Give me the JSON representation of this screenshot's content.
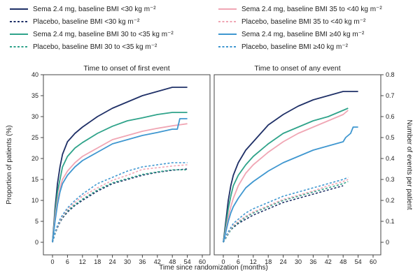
{
  "chart_data": {
    "type": "line",
    "legend": {
      "placement": "top",
      "entries": [
        {
          "label": "Sema 2.4 mg, baseline BMI <30 kg m⁻²",
          "color": "#1f3067",
          "dash": false
        },
        {
          "label": "Placebo, baseline BMI <30 kg m⁻²",
          "color": "#1f3067",
          "dash": true
        },
        {
          "label": "Sema 2.4 mg, baseline BMI 30 to <35 kg m⁻²",
          "color": "#2fa38a",
          "dash": false
        },
        {
          "label": "Placebo, baseline BMI 30 to <35 kg m⁻²",
          "color": "#2fa38a",
          "dash": true
        },
        {
          "label": "Sema 2.4 mg, baseline BMI 35 to <40 kg m⁻²",
          "color": "#f0a6b4",
          "dash": false
        },
        {
          "label": "Placebo, baseline BMI 35 to <40 kg m⁻²",
          "color": "#f0a6b4",
          "dash": true
        },
        {
          "label": "Sema 2.4 mg, baseline BMI ≥40 kg m⁻²",
          "color": "#3f97d0",
          "dash": false
        },
        {
          "label": "Placebo, baseline BMI ≥40 kg m⁻²",
          "color": "#3f97d0",
          "dash": true
        }
      ]
    },
    "xlabel": "Time since randomization (months)",
    "x_ticks": [
      0,
      6,
      12,
      18,
      24,
      30,
      36,
      42,
      48,
      54,
      60
    ],
    "xlim": [
      -2,
      62
    ],
    "panels": [
      {
        "title": "Time to onset of first event",
        "ylabel": "Proportion of patients (%)",
        "y_axis_side": "left",
        "ylim": [
          -3,
          40
        ],
        "y_ticks": [
          0,
          5,
          10,
          15,
          20,
          25,
          30,
          35,
          40
        ],
        "series": [
          {
            "legend_index": 0,
            "color": "#1f3067",
            "dash": false,
            "x": [
              0,
              1,
              2,
              3,
              4,
              6,
              9,
              12,
              18,
              24,
              30,
              36,
              42,
              48,
              54
            ],
            "y": [
              0,
              8,
              14,
              18,
              21,
              24,
              26,
              27.5,
              30,
              32,
              33.5,
              35,
              36,
              37,
              37
            ]
          },
          {
            "legend_index": 2,
            "color": "#2fa38a",
            "dash": false,
            "x": [
              0,
              1,
              2,
              3,
              4,
              6,
              9,
              12,
              18,
              24,
              30,
              36,
              42,
              48,
              54
            ],
            "y": [
              0,
              7,
              12,
              15,
              18,
              20.5,
              22.5,
              23.8,
              26,
              27.7,
              29,
              29.7,
              30.5,
              31,
              31
            ]
          },
          {
            "legend_index": 4,
            "color": "#f0a6b4",
            "dash": false,
            "x": [
              0,
              1,
              2,
              3,
              4,
              6,
              9,
              12,
              18,
              24,
              30,
              36,
              42,
              48,
              54
            ],
            "y": [
              0,
              6,
              10,
              13,
              15,
              17,
              19,
              20.5,
              22.5,
              24.5,
              25.5,
              26.5,
              27.2,
              27.8,
              28.3
            ]
          },
          {
            "legend_index": 6,
            "color": "#3f97d0",
            "dash": false,
            "x": [
              0,
              1,
              2,
              3,
              4,
              6,
              9,
              12,
              18,
              24,
              30,
              36,
              42,
              48,
              50,
              51,
              54
            ],
            "y": [
              0,
              5,
              9,
              12,
              14,
              16,
              18,
              19.5,
              21.5,
              23.5,
              24.5,
              25.5,
              26.2,
              27,
              27,
              29.5,
              29.5
            ]
          },
          {
            "legend_index": 1,
            "color": "#1f3067",
            "dash": true,
            "x": [
              0,
              1,
              2,
              3,
              4,
              6,
              9,
              12,
              18,
              24,
              30,
              36,
              42,
              48,
              54
            ],
            "y": [
              0,
              2,
              3.5,
              4.8,
              5.8,
              7.2,
              8.8,
              10,
              12.2,
              14,
              15,
              16,
              16.7,
              17.2,
              17.5
            ]
          },
          {
            "legend_index": 3,
            "color": "#2fa38a",
            "dash": true,
            "x": [
              0,
              1,
              2,
              3,
              4,
              6,
              9,
              12,
              18,
              24,
              30,
              36,
              42,
              48,
              54
            ],
            "y": [
              0,
              2,
              3.7,
              5,
              6,
              7.5,
              9,
              10.3,
              12.5,
              14.2,
              15.2,
              16.2,
              16.8,
              17.3,
              17.3
            ]
          },
          {
            "legend_index": 5,
            "color": "#f0a6b4",
            "dash": true,
            "x": [
              0,
              1,
              2,
              3,
              4,
              6,
              9,
              12,
              18,
              24,
              30,
              36,
              42,
              48,
              54
            ],
            "y": [
              0,
              2.2,
              3.8,
              5.2,
              6.2,
              7.8,
              9.5,
              11,
              13,
              14.8,
              16,
              17.4,
              17.8,
              18.2,
              18.5
            ]
          },
          {
            "legend_index": 7,
            "color": "#3f97d0",
            "dash": true,
            "x": [
              0,
              1,
              2,
              3,
              4,
              6,
              9,
              12,
              18,
              24,
              30,
              36,
              42,
              48,
              54
            ],
            "y": [
              0,
              2.4,
              4,
              5.5,
              6.5,
              8.2,
              10,
              11.5,
              14,
              15.5,
              17,
              18,
              18.5,
              19,
              19
            ]
          }
        ]
      },
      {
        "title": "Time to onset of any event",
        "ylabel": "Number of events per patient",
        "y_axis_side": "right",
        "ylim": [
          -0.06,
          0.8
        ],
        "y_ticks": [
          0,
          0.1,
          0.2,
          0.3,
          0.4,
          0.5,
          0.6,
          0.7,
          0.8
        ],
        "series": [
          {
            "legend_index": 0,
            "color": "#1f3067",
            "dash": false,
            "x": [
              0,
              1,
              2,
              3,
              4,
              6,
              9,
              12,
              18,
              24,
              30,
              36,
              42,
              48,
              54
            ],
            "y": [
              0,
              0.1,
              0.2,
              0.27,
              0.32,
              0.38,
              0.44,
              0.48,
              0.56,
              0.61,
              0.65,
              0.68,
              0.7,
              0.72,
              0.72
            ]
          },
          {
            "legend_index": 2,
            "color": "#2fa38a",
            "dash": false,
            "x": [
              0,
              1,
              2,
              3,
              4,
              6,
              9,
              12,
              18,
              24,
              30,
              36,
              42,
              48,
              50
            ],
            "y": [
              0,
              0.08,
              0.16,
              0.22,
              0.27,
              0.32,
              0.37,
              0.41,
              0.47,
              0.52,
              0.55,
              0.58,
              0.6,
              0.63,
              0.64
            ]
          },
          {
            "legend_index": 4,
            "color": "#f0a6b4",
            "dash": false,
            "x": [
              0,
              1,
              2,
              3,
              4,
              6,
              9,
              12,
              18,
              24,
              30,
              36,
              42,
              48,
              50
            ],
            "y": [
              0,
              0.06,
              0.12,
              0.17,
              0.21,
              0.27,
              0.33,
              0.37,
              0.43,
              0.48,
              0.52,
              0.55,
              0.58,
              0.61,
              0.63
            ]
          },
          {
            "legend_index": 6,
            "color": "#3f97d0",
            "dash": false,
            "x": [
              0,
              1,
              2,
              3,
              4,
              6,
              9,
              12,
              18,
              24,
              30,
              36,
              42,
              48,
              49,
              51,
              52,
              54
            ],
            "y": [
              0,
              0.05,
              0.1,
              0.14,
              0.17,
              0.21,
              0.26,
              0.29,
              0.34,
              0.38,
              0.41,
              0.44,
              0.46,
              0.48,
              0.5,
              0.52,
              0.55,
              0.55
            ]
          },
          {
            "legend_index": 1,
            "color": "#1f3067",
            "dash": true,
            "x": [
              0,
              1,
              2,
              3,
              4,
              6,
              9,
              12,
              18,
              24,
              30,
              36,
              42,
              48
            ],
            "y": [
              0,
              0.02,
              0.04,
              0.06,
              0.07,
              0.09,
              0.11,
              0.13,
              0.16,
              0.19,
              0.21,
              0.23,
              0.25,
              0.27
            ]
          },
          {
            "legend_index": 3,
            "color": "#2fa38a",
            "dash": true,
            "x": [
              0,
              1,
              2,
              3,
              4,
              6,
              9,
              12,
              18,
              24,
              30,
              36,
              42,
              48,
              50
            ],
            "y": [
              0,
              0.02,
              0.04,
              0.06,
              0.075,
              0.095,
              0.12,
              0.14,
              0.17,
              0.2,
              0.22,
              0.24,
              0.26,
              0.28,
              0.29
            ]
          },
          {
            "legend_index": 5,
            "color": "#f0a6b4",
            "dash": true,
            "x": [
              0,
              1,
              2,
              3,
              4,
              6,
              9,
              12,
              18,
              24,
              30,
              36,
              42,
              48,
              50
            ],
            "y": [
              0,
              0.025,
              0.045,
              0.065,
              0.08,
              0.1,
              0.125,
              0.145,
              0.175,
              0.205,
              0.225,
              0.245,
              0.27,
              0.29,
              0.3
            ]
          },
          {
            "legend_index": 7,
            "color": "#3f97d0",
            "dash": true,
            "x": [
              0,
              1,
              2,
              3,
              4,
              6,
              9,
              12,
              18,
              24,
              30,
              36,
              42,
              48,
              50
            ],
            "y": [
              0,
              0.03,
              0.05,
              0.07,
              0.09,
              0.11,
              0.14,
              0.16,
              0.19,
              0.22,
              0.24,
              0.26,
              0.28,
              0.3,
              0.31
            ]
          }
        ]
      }
    ]
  }
}
